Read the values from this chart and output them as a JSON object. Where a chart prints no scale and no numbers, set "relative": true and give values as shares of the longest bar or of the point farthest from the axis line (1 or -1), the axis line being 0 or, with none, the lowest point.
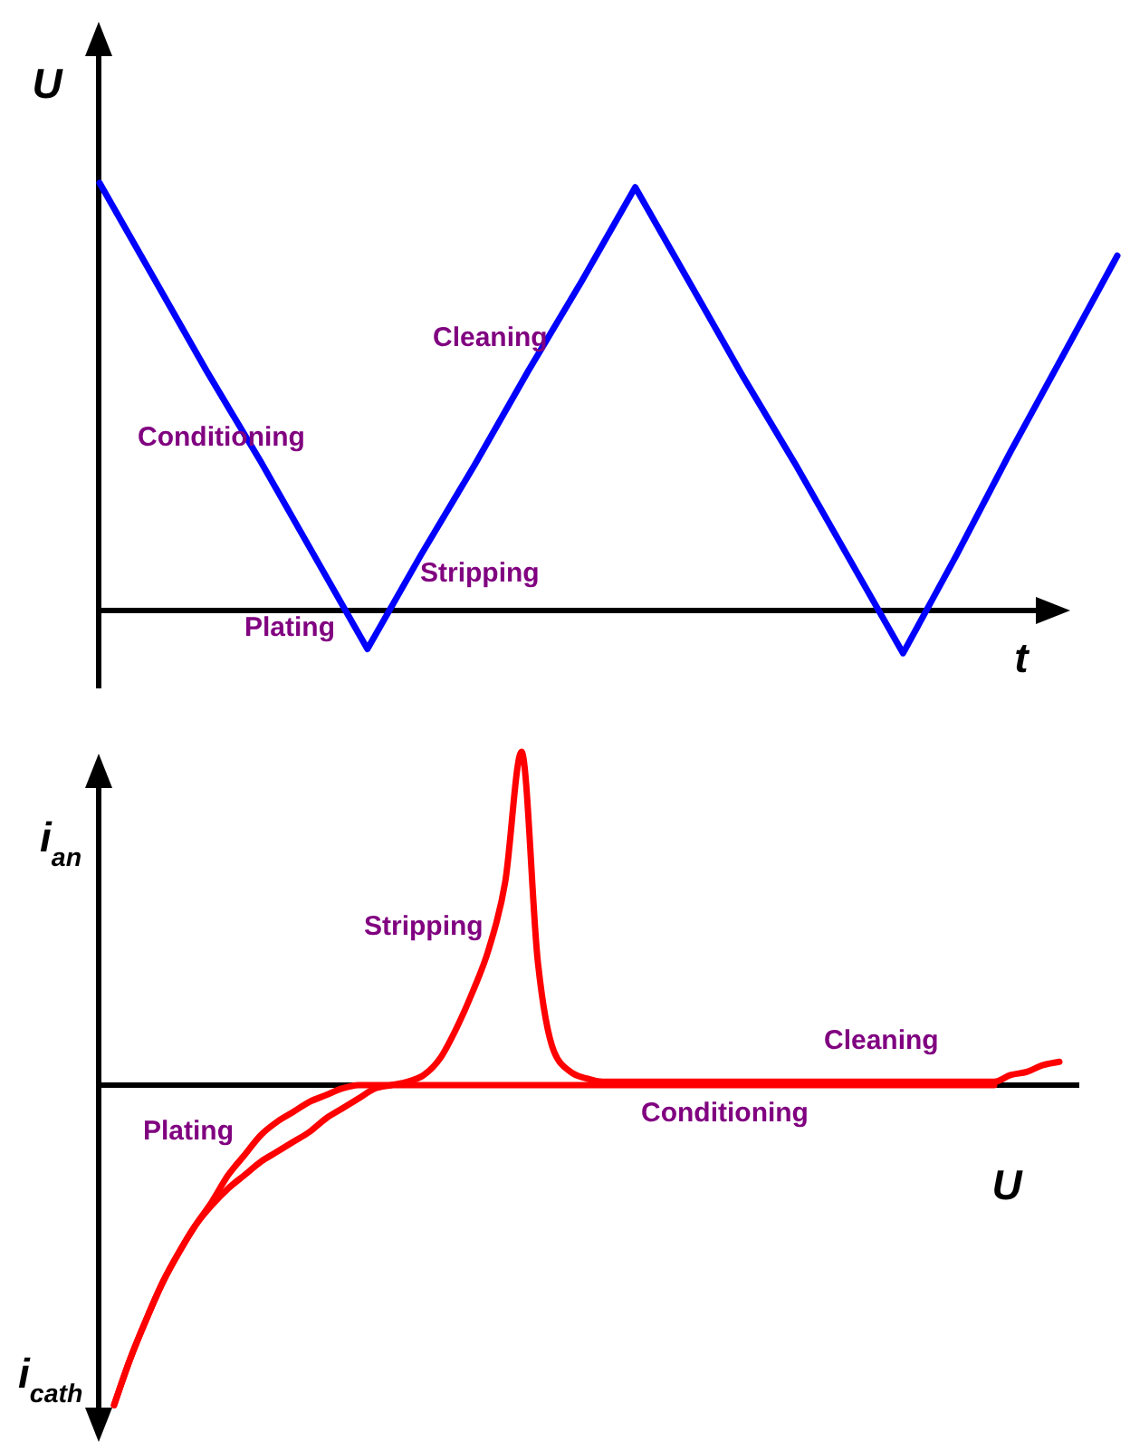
{
  "chart_data": [
    {
      "type": "line",
      "relative": true,
      "xlabel": "t",
      "ylabel": "U",
      "categories": [
        null,
        null,
        null,
        null,
        null,
        null,
        null,
        null,
        null,
        null,
        null,
        null,
        null,
        null,
        null,
        null,
        null,
        null,
        null,
        null
      ],
      "series": [
        {
          "color": "#0000ff",
          "values": [
            1,
            0.78,
            0.56,
            0.35,
            0.13,
            -0.09,
            0.13,
            0.34,
            0.56,
            0.77,
            0.99,
            0.77,
            0.55,
            0.34,
            0.12,
            -0.1,
            0.13,
            0.37,
            0.6,
            0.83
          ]
        }
      ],
      "annotations": [
        "Conditioning",
        "Cleaning",
        "Stripping",
        "Plating"
      ]
    },
    {
      "type": "line",
      "relative": true,
      "xlabel": "U",
      "ylabel": "i$_{an}$",
      "categories": [
        null,
        null,
        null,
        null,
        null,
        null,
        null,
        null,
        null,
        null,
        null,
        null,
        null,
        null,
        null,
        null,
        null,
        null,
        null,
        null,
        null,
        null,
        null,
        null,
        null,
        null,
        null,
        null,
        null,
        null,
        null,
        null,
        null,
        null,
        null,
        null,
        null,
        null,
        null,
        null,
        null,
        null,
        null,
        null,
        null,
        null,
        null,
        null,
        null,
        null,
        null,
        null,
        null,
        null,
        null,
        null,
        null,
        null,
        null
      ],
      "series": [
        {
          "color": "#ff0000",
          "values": [
            -0.96,
            -0.82,
            -0.7,
            -0.59,
            -0.5,
            -0.42,
            -0.36,
            -0.31,
            -0.27,
            -0.23,
            -0.2,
            -0.17,
            -0.14,
            -0.1,
            -0.07,
            -0.04,
            -0.01,
            0,
            0.01,
            0.03,
            0.08,
            0.17,
            0.28,
            0.41,
            0.61,
            1,
            0.37,
            0.1,
            0.04,
            0.02,
            0.01,
            0.01,
            0.01,
            0.01,
            0.01,
            0.01,
            0.01,
            0.01,
            0.01,
            0.01,
            0.01,
            0.01,
            0.01,
            0.01,
            0.01,
            0.01,
            0.01,
            0.01,
            0.01,
            0.01,
            0.01,
            0.01,
            0.01,
            0.01,
            0.01,
            0.03,
            0.04,
            0.06,
            0.07
          ]
        },
        {
          "color": "#ff0000",
          "values": [
            -0.96,
            -0.82,
            -0.7,
            -0.59,
            -0.5,
            -0.42,
            -0.35,
            -0.27,
            -0.21,
            -0.15,
            -0.11,
            -0.08,
            -0.05,
            -0.03,
            -0.01,
            0,
            0,
            0,
            0,
            0,
            0,
            0,
            0,
            0,
            0,
            0,
            0,
            0,
            0,
            0,
            0,
            0,
            0,
            0,
            0,
            0,
            0,
            0,
            0,
            0,
            0,
            0,
            0,
            0,
            0,
            0,
            0,
            0,
            0,
            0,
            0,
            0,
            0,
            0,
            0,
            null,
            null,
            null,
            null
          ]
        }
      ],
      "annotations": [
        "Stripping",
        "Cleaning",
        "Conditioning",
        "Plating",
        "i$_{cath}$"
      ]
    }
  ]
}
